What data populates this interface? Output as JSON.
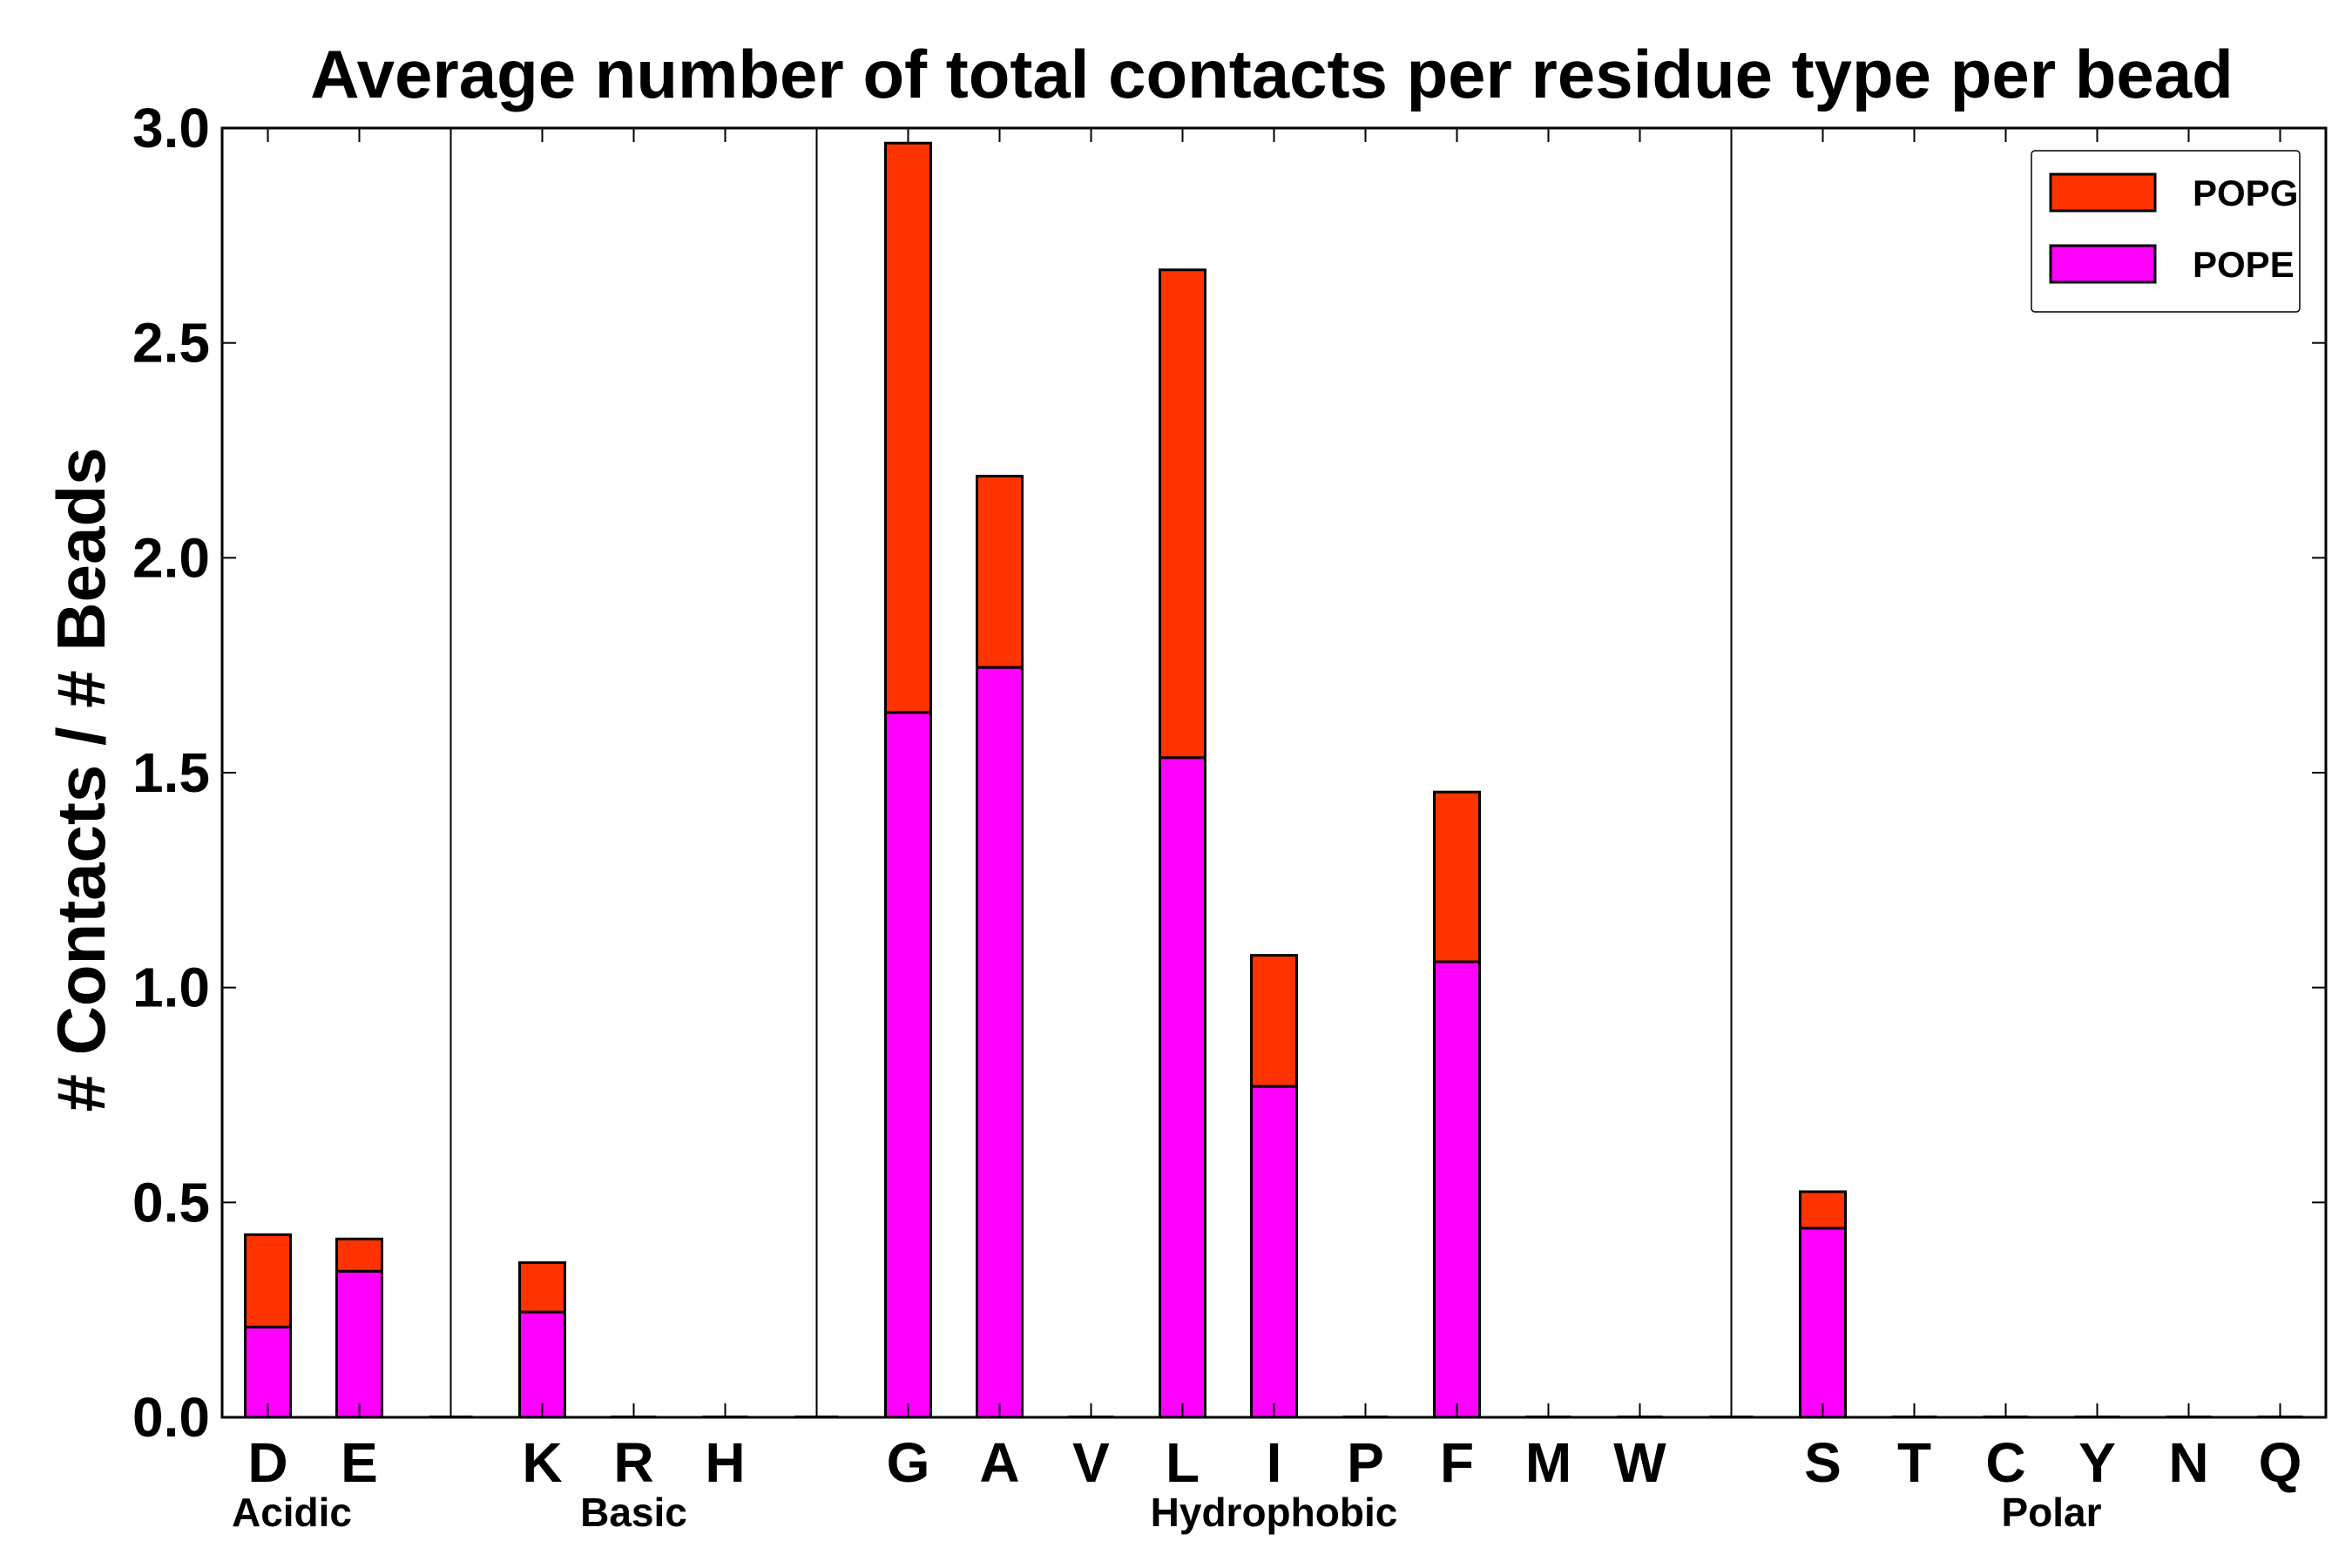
{
  "chart_data": {
    "type": "bar",
    "stacked": true,
    "title": "Average number of total contacts per residue type per bead",
    "xlabel": "",
    "ylabel": "# Contacts / # Beads",
    "ylim": [
      0,
      3.0
    ],
    "yticks": [
      "0.0",
      "0.5",
      "1.0",
      "1.5",
      "2.0",
      "2.5",
      "3.0"
    ],
    "legend_position": "top-right",
    "slots": [
      "D",
      "E",
      "",
      "K",
      "R",
      "H",
      "",
      "G",
      "A",
      "V",
      "L",
      "I",
      "P",
      "F",
      "M",
      "W",
      "",
      "S",
      "T",
      "C",
      "Y",
      "N",
      "Q"
    ],
    "categories": [
      "D",
      "E",
      "K",
      "R",
      "H",
      "G",
      "A",
      "V",
      "L",
      "I",
      "P",
      "F",
      "M",
      "W",
      "S",
      "T",
      "C",
      "Y",
      "N",
      "Q"
    ],
    "groups": [
      {
        "name": "Acidic",
        "members": [
          "D",
          "E"
        ]
      },
      {
        "name": "Basic",
        "members": [
          "K",
          "R",
          "H"
        ]
      },
      {
        "name": "Hydrophobic",
        "members": [
          "G",
          "A",
          "V",
          "L",
          "I",
          "P",
          "F",
          "M",
          "W"
        ]
      },
      {
        "name": "Polar",
        "members": [
          "S",
          "T",
          "C",
          "Y",
          "N",
          "Q"
        ]
      }
    ],
    "series": [
      {
        "name": "POPE",
        "color": "#ff00ff",
        "values": [
          0.21,
          0.34,
          0.245,
          0,
          0,
          1.64,
          1.745,
          0,
          1.535,
          0.77,
          0,
          1.06,
          0,
          0,
          0.44,
          0,
          0,
          0,
          0,
          0
        ]
      },
      {
        "name": "POPG",
        "color": "#ff3300",
        "values": [
          0.215,
          0.075,
          0.115,
          0,
          0,
          1.325,
          0.445,
          0,
          1.135,
          0.305,
          0,
          0.395,
          0,
          0,
          0.085,
          0,
          0,
          0,
          0,
          0
        ]
      }
    ],
    "legend": [
      {
        "label": "POPG",
        "color": "#ff3300"
      },
      {
        "label": "POPE",
        "color": "#ff00ff"
      }
    ]
  }
}
